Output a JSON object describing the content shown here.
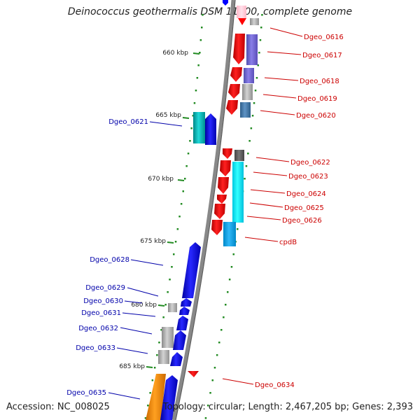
{
  "title": "Deinococcus geothermalis DSM 11300, complete genome",
  "accession": "Accession: NC_008025",
  "topology": "Topology: circular; Length: 2,467,205 bp; Genes: 2,393",
  "kbp_labels": [
    "660 kbp",
    "665 kbp",
    "670 kbp",
    "675 kbp",
    "680 kbp",
    "685 kbp"
  ],
  "genes_right": [
    {
      "label": "Dgeo_0616"
    },
    {
      "label": "Dgeo_0617"
    },
    {
      "label": "Dgeo_0618"
    },
    {
      "label": "Dgeo_0619"
    },
    {
      "label": "Dgeo_0620"
    },
    {
      "label": "Dgeo_0622"
    },
    {
      "label": "Dgeo_0623"
    },
    {
      "label": "Dgeo_0624"
    },
    {
      "label": "Dgeo_0625"
    },
    {
      "label": "Dgeo_0626"
    },
    {
      "label": "cpdB"
    },
    {
      "label": "Dgeo_0634"
    }
  ],
  "genes_left": [
    {
      "label": "Dgeo_0621"
    },
    {
      "label": "Dgeo_0628"
    },
    {
      "label": "Dgeo_0629"
    },
    {
      "label": "Dgeo_0630"
    },
    {
      "label": "Dgeo_0631"
    },
    {
      "label": "Dgeo_0632"
    },
    {
      "label": "Dgeo_0633"
    },
    {
      "label": "Dgeo_0635"
    }
  ],
  "colors": {
    "forward": "#ff0000",
    "reverse": "#0000ff",
    "label_forward": "#cc0000",
    "label_reverse": "#0000aa",
    "backbone": "#888888",
    "tick": "#228b22"
  }
}
